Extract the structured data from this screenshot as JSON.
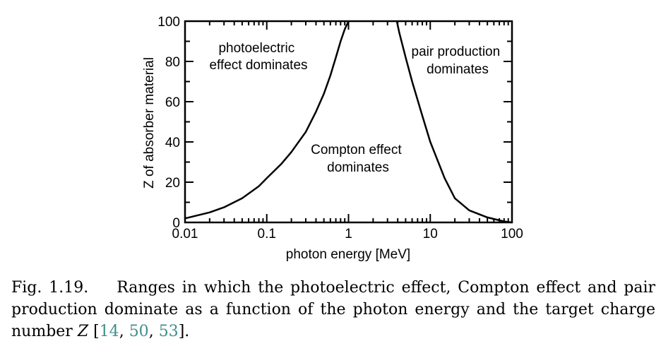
{
  "chart_data": {
    "type": "line",
    "title": "",
    "xlabel": "photon energy [MeV]",
    "ylabel": "Z of absorber material",
    "xscale": "log",
    "xlim": [
      0.01,
      100
    ],
    "ylim": [
      0,
      100
    ],
    "x_ticks": [
      "0.01",
      "0.1",
      "1",
      "10",
      "100"
    ],
    "y_ticks": [
      "0",
      "20",
      "40",
      "60",
      "80",
      "100"
    ],
    "grid": false,
    "legend": "none",
    "series": [
      {
        "x": [
          0.01,
          0.02,
          0.03,
          0.05,
          0.08,
          0.1,
          0.15,
          0.2,
          0.3,
          0.4,
          0.5,
          0.6,
          0.7,
          0.8,
          0.9,
          1.0
        ],
        "y": [
          2,
          5,
          7.5,
          12,
          18,
          22,
          29,
          35,
          45,
          55,
          64,
          73,
          82,
          90,
          96,
          100
        ]
      },
      {
        "x": [
          3.9,
          4.2,
          5,
          6,
          8,
          10,
          15,
          20,
          30,
          50,
          80,
          100
        ],
        "y": [
          100,
          94,
          82,
          70,
          53,
          40,
          22,
          12,
          6,
          2.5,
          0.5,
          0
        ]
      }
    ],
    "annotations": [
      {
        "lines": [
          "photoelectric",
          "effect dominates"
        ]
      },
      {
        "lines": [
          "Compton effect",
          "dominates"
        ]
      },
      {
        "lines": [
          "pair production",
          "dominates"
        ]
      }
    ]
  },
  "caption": {
    "label": "Fig. 1.19.",
    "text_before": "Ranges in which the photoelectric effect, Compton effect and pair production dominate as a function of the photon energy and the target charge number ",
    "variable": "Z",
    "open_bracket": " [",
    "citations": [
      "14",
      "50",
      "53"
    ],
    "close": "]."
  }
}
